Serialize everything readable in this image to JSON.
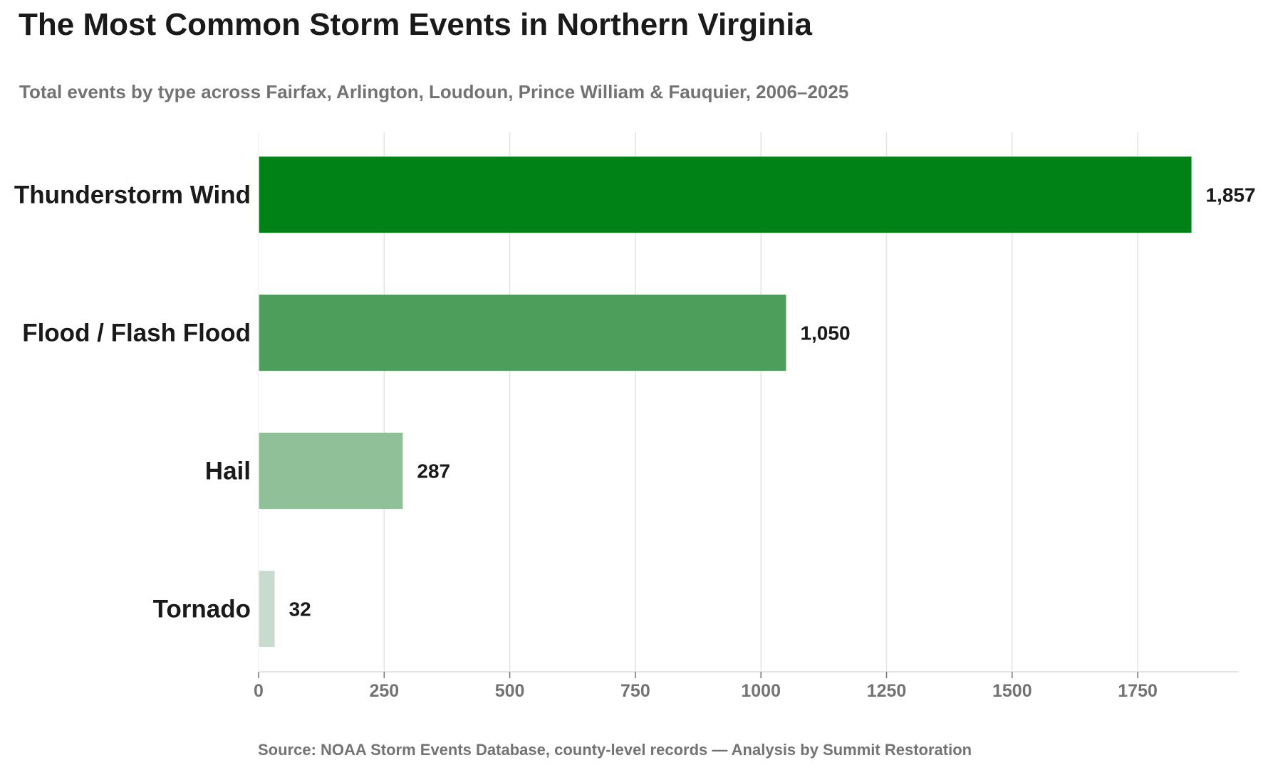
{
  "chart_data": {
    "type": "bar",
    "orientation": "horizontal",
    "title": "The Most Common Storm Events in Northern Virginia",
    "subtitle": "Total events by type across Fairfax, Arlington, Loudoun, Prince William & Fauquier, 2006–2025",
    "source": "Source: NOAA Storm Events Database, county-level records  —  Analysis by Summit Restoration",
    "categories": [
      "Thunderstorm Wind",
      "Flood / Flash Flood",
      "Hail",
      "Tornado"
    ],
    "values": [
      1857,
      1050,
      287,
      32
    ],
    "value_labels": [
      "1,857",
      "1,050",
      "287",
      "32"
    ],
    "colors": [
      "#008216",
      "#4d9e5a",
      "#90c098",
      "#c9dbcf"
    ],
    "xlabel": "",
    "ylabel": "",
    "xlim": [
      0,
      1950
    ],
    "xticks": [
      0,
      250,
      500,
      750,
      1000,
      1250,
      1500,
      1750
    ],
    "grid": "vertical",
    "legend": "none"
  }
}
